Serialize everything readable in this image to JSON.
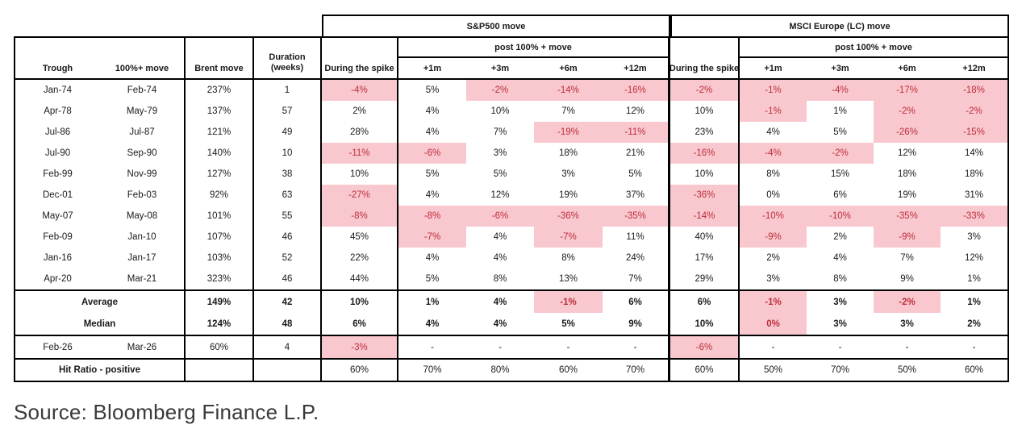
{
  "chart_data": {
    "type": "table",
    "groups": {
      "sp": "S&P500 move",
      "msci": "MSCI Europe (LC) move",
      "post": "post 100% + move"
    },
    "columns": {
      "trough": "Trough",
      "move": "100%+ move",
      "brent": "Brent move",
      "duration_line1": "Duration",
      "duration_line2": "(weeks)",
      "spike": "During the spike",
      "post_cols": [
        "+1m",
        "+3m",
        "+6m",
        "+12m"
      ]
    },
    "rows": [
      {
        "trough": "Jan-74",
        "move": "Feb-74",
        "brent": "237%",
        "duration": "1",
        "sp": [
          "-4%",
          "5%",
          "-2%",
          "-14%",
          "-16%"
        ],
        "sp_h": [
          1,
          0,
          1,
          1,
          1
        ],
        "msci": [
          "-2%",
          "-1%",
          "-4%",
          "-17%",
          "-18%"
        ],
        "msci_h": [
          1,
          1,
          1,
          1,
          1
        ]
      },
      {
        "trough": "Apr-78",
        "move": "May-79",
        "brent": "137%",
        "duration": "57",
        "sp": [
          "2%",
          "4%",
          "10%",
          "7%",
          "12%"
        ],
        "sp_h": [
          0,
          0,
          0,
          0,
          0
        ],
        "msci": [
          "10%",
          "-1%",
          "1%",
          "-2%",
          "-2%"
        ],
        "msci_h": [
          0,
          1,
          0,
          1,
          1
        ]
      },
      {
        "trough": "Jul-86",
        "move": "Jul-87",
        "brent": "121%",
        "duration": "49",
        "sp": [
          "28%",
          "4%",
          "7%",
          "-19%",
          "-11%"
        ],
        "sp_h": [
          0,
          0,
          0,
          1,
          1
        ],
        "msci": [
          "23%",
          "4%",
          "5%",
          "-26%",
          "-15%"
        ],
        "msci_h": [
          0,
          0,
          0,
          1,
          1
        ]
      },
      {
        "trough": "Jul-90",
        "move": "Sep-90",
        "brent": "140%",
        "duration": "10",
        "sp": [
          "-11%",
          "-6%",
          "3%",
          "18%",
          "21%"
        ],
        "sp_h": [
          1,
          1,
          0,
          0,
          0
        ],
        "msci": [
          "-16%",
          "-4%",
          "-2%",
          "12%",
          "14%"
        ],
        "msci_h": [
          1,
          1,
          1,
          0,
          0
        ]
      },
      {
        "trough": "Feb-99",
        "move": "Nov-99",
        "brent": "127%",
        "duration": "38",
        "sp": [
          "10%",
          "5%",
          "5%",
          "3%",
          "5%"
        ],
        "sp_h": [
          0,
          0,
          0,
          0,
          0
        ],
        "msci": [
          "10%",
          "8%",
          "15%",
          "18%",
          "18%"
        ],
        "msci_h": [
          0,
          0,
          0,
          0,
          0
        ]
      },
      {
        "trough": "Dec-01",
        "move": "Feb-03",
        "brent": "92%",
        "duration": "63",
        "sp": [
          "-27%",
          "4%",
          "12%",
          "19%",
          "37%"
        ],
        "sp_h": [
          1,
          0,
          0,
          0,
          0
        ],
        "msci": [
          "-36%",
          "0%",
          "6%",
          "19%",
          "31%"
        ],
        "msci_h": [
          1,
          0,
          0,
          0,
          0
        ]
      },
      {
        "trough": "May-07",
        "move": "May-08",
        "brent": "101%",
        "duration": "55",
        "sp": [
          "-8%",
          "-8%",
          "-6%",
          "-36%",
          "-35%"
        ],
        "sp_h": [
          1,
          1,
          1,
          1,
          1
        ],
        "msci": [
          "-14%",
          "-10%",
          "-10%",
          "-35%",
          "-33%"
        ],
        "msci_h": [
          1,
          1,
          1,
          1,
          1
        ]
      },
      {
        "trough": "Feb-09",
        "move": "Jan-10",
        "brent": "107%",
        "duration": "46",
        "sp": [
          "45%",
          "-7%",
          "4%",
          "-7%",
          "11%"
        ],
        "sp_h": [
          0,
          1,
          0,
          1,
          0
        ],
        "msci": [
          "40%",
          "-9%",
          "2%",
          "-9%",
          "3%"
        ],
        "msci_h": [
          0,
          1,
          0,
          1,
          0
        ]
      },
      {
        "trough": "Jan-16",
        "move": "Jan-17",
        "brent": "103%",
        "duration": "52",
        "sp": [
          "22%",
          "4%",
          "4%",
          "8%",
          "24%"
        ],
        "sp_h": [
          0,
          0,
          0,
          0,
          0
        ],
        "msci": [
          "17%",
          "2%",
          "4%",
          "7%",
          "12%"
        ],
        "msci_h": [
          0,
          0,
          0,
          0,
          0
        ]
      },
      {
        "trough": "Apr-20",
        "move": "Mar-21",
        "brent": "323%",
        "duration": "46",
        "sp": [
          "44%",
          "5%",
          "8%",
          "13%",
          "7%"
        ],
        "sp_h": [
          0,
          0,
          0,
          0,
          0
        ],
        "msci": [
          "29%",
          "3%",
          "8%",
          "9%",
          "1%"
        ],
        "msci_h": [
          0,
          0,
          0,
          0,
          0
        ]
      }
    ],
    "average": {
      "label": "Average",
      "brent": "149%",
      "duration": "42",
      "sp": [
        "10%",
        "1%",
        "4%",
        "-1%",
        "6%"
      ],
      "sp_h": [
        0,
        0,
        0,
        1,
        0
      ],
      "msci": [
        "6%",
        "-1%",
        "3%",
        "-2%",
        "1%"
      ],
      "msci_h": [
        0,
        1,
        0,
        1,
        0
      ]
    },
    "median": {
      "label": "Median",
      "brent": "124%",
      "duration": "48",
      "sp": [
        "6%",
        "4%",
        "4%",
        "5%",
        "9%"
      ],
      "sp_h": [
        0,
        0,
        0,
        0,
        0
      ],
      "msci": [
        "10%",
        "0%",
        "3%",
        "3%",
        "2%"
      ],
      "msci_h": [
        0,
        1,
        0,
        0,
        0
      ]
    },
    "latest": {
      "trough": "Feb-26",
      "move": "Mar-26",
      "brent": "60%",
      "duration": "4",
      "sp": [
        "-3%",
        "-",
        "-",
        "-",
        "-"
      ],
      "sp_h": [
        1,
        0,
        0,
        0,
        0
      ],
      "msci": [
        "-6%",
        "-",
        "-",
        "-",
        "-"
      ],
      "msci_h": [
        1,
        0,
        0,
        0,
        0
      ]
    },
    "hit_ratio": {
      "label": "Hit Ratio - positive",
      "brent": "",
      "duration": "",
      "sp": [
        "60%",
        "70%",
        "80%",
        "60%",
        "70%"
      ],
      "msci": [
        "60%",
        "50%",
        "70%",
        "50%",
        "60%"
      ]
    },
    "layout_hints": {
      "highlight_meaning": "negative / flagged values",
      "grid": "boxed groups"
    }
  },
  "colors": {
    "highlight_bg": "#F8C8CE",
    "highlight_text": "#BE2D3C",
    "border": "#000000"
  },
  "source": "Source: Bloomberg Finance L.P."
}
